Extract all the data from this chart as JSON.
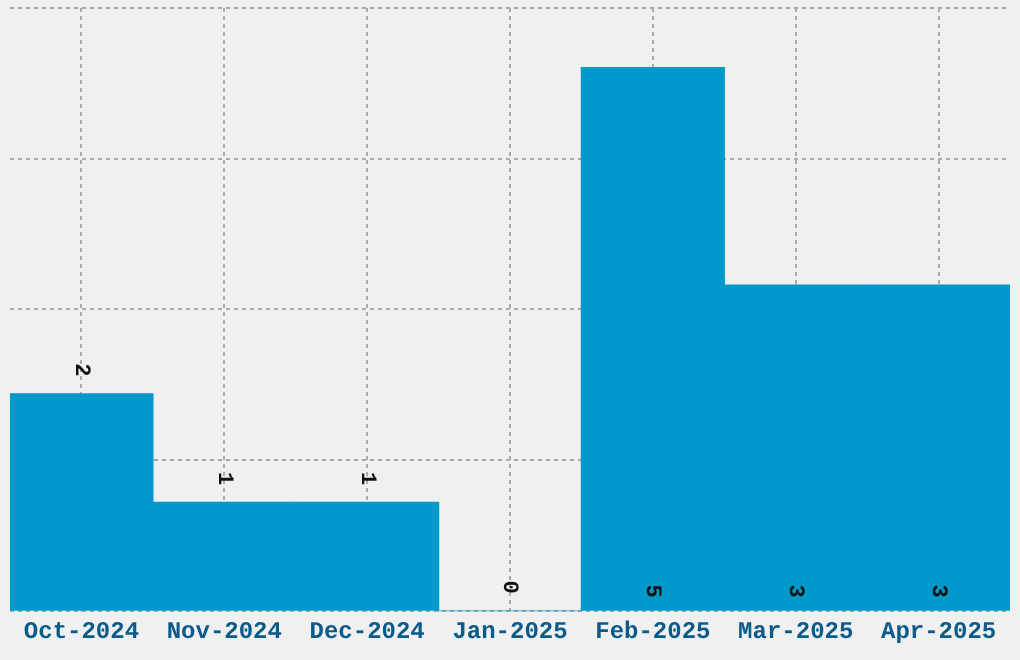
{
  "chart_data": {
    "type": "bar",
    "categories": [
      "Oct-2024",
      "Nov-2024",
      "Dec-2024",
      "Jan-2025",
      "Feb-2025",
      "Mar-2025",
      "Apr-2025"
    ],
    "values": [
      2,
      1,
      1,
      0,
      5,
      3,
      3
    ],
    "color": "#0099cc",
    "ylim": [
      0,
      5.55
    ],
    "yticks": [
      {
        "value": 0,
        "label": null
      },
      {
        "value": 1.39,
        "label": null
      },
      {
        "value": 2.78,
        "label": null
      },
      {
        "value": 4.16,
        "label": null
      },
      {
        "value": 5.55,
        "label": null
      }
    ],
    "tick_labels": "x",
    "grid": true,
    "data_labels": true,
    "legend": false
  }
}
